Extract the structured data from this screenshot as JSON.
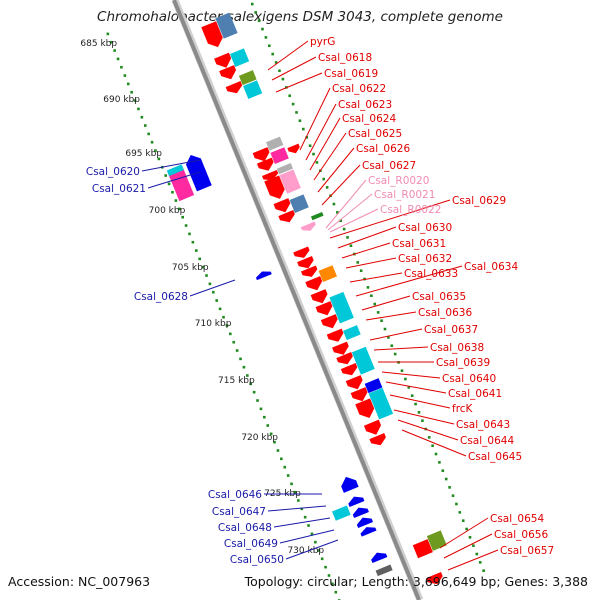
{
  "title": "Chromohalobacter salexigens DSM 3043, complete genome",
  "footer": {
    "accession": "Accession: NC_007963",
    "stats": "Topology: circular; Length: 3,696,649 bp; Genes: 3,388"
  },
  "colors": {
    "backbone": "#8a8a8a",
    "ruler_dots": "#1f8a1f",
    "forward_label": "#e00000",
    "reverse_label": "#1a1aa8",
    "rna_label": "#f08cb4",
    "cds": "#ff0000",
    "reverse_cds": "#0000ee",
    "rna": "#ff9ecb",
    "cyan": "#00c8d8",
    "steel_blue": "#4e7fb0",
    "magenta": "#ff2aa0",
    "orange": "#ff8800",
    "olive": "#6f9a20",
    "gray": "#b0b0b0"
  },
  "ruler": {
    "unit": "kbp",
    "ticks": [
      685,
      690,
      695,
      700,
      705,
      710,
      715,
      720,
      725,
      730
    ],
    "tick_labels": [
      "685 kbp",
      "690 kbp",
      "695 kbp",
      "700 kbp",
      "705 kbp",
      "710 kbp",
      "715 kbp",
      "720 kbp",
      "725 kbp",
      "730 kbp"
    ]
  },
  "forward_labels": [
    "pyrG",
    "Csal_0618",
    "Csal_0619",
    "Csal_0622",
    "Csal_0623",
    "Csal_0624",
    "Csal_0625",
    "Csal_0626",
    "Csal_0627",
    "Csal_0629",
    "Csal_0630",
    "Csal_0631",
    "Csal_0632",
    "Csal_0633",
    "Csal_0634",
    "Csal_0635",
    "Csal_0636",
    "Csal_0637",
    "Csal_0638",
    "Csal_0639",
    "Csal_0640",
    "Csal_0641",
    "frcK",
    "Csal_0643",
    "Csal_0644",
    "Csal_0645",
    "Csal_0654",
    "Csal_0656",
    "Csal_0657"
  ],
  "rna_labels": [
    "Csal_R0020",
    "Csal_R0021",
    "Csal_R0022"
  ],
  "reverse_labels": [
    "Csal_0620",
    "Csal_0621",
    "Csal_0628",
    "Csal_0646",
    "Csal_0647",
    "Csal_0648",
    "Csal_0649",
    "Csal_0650"
  ]
}
